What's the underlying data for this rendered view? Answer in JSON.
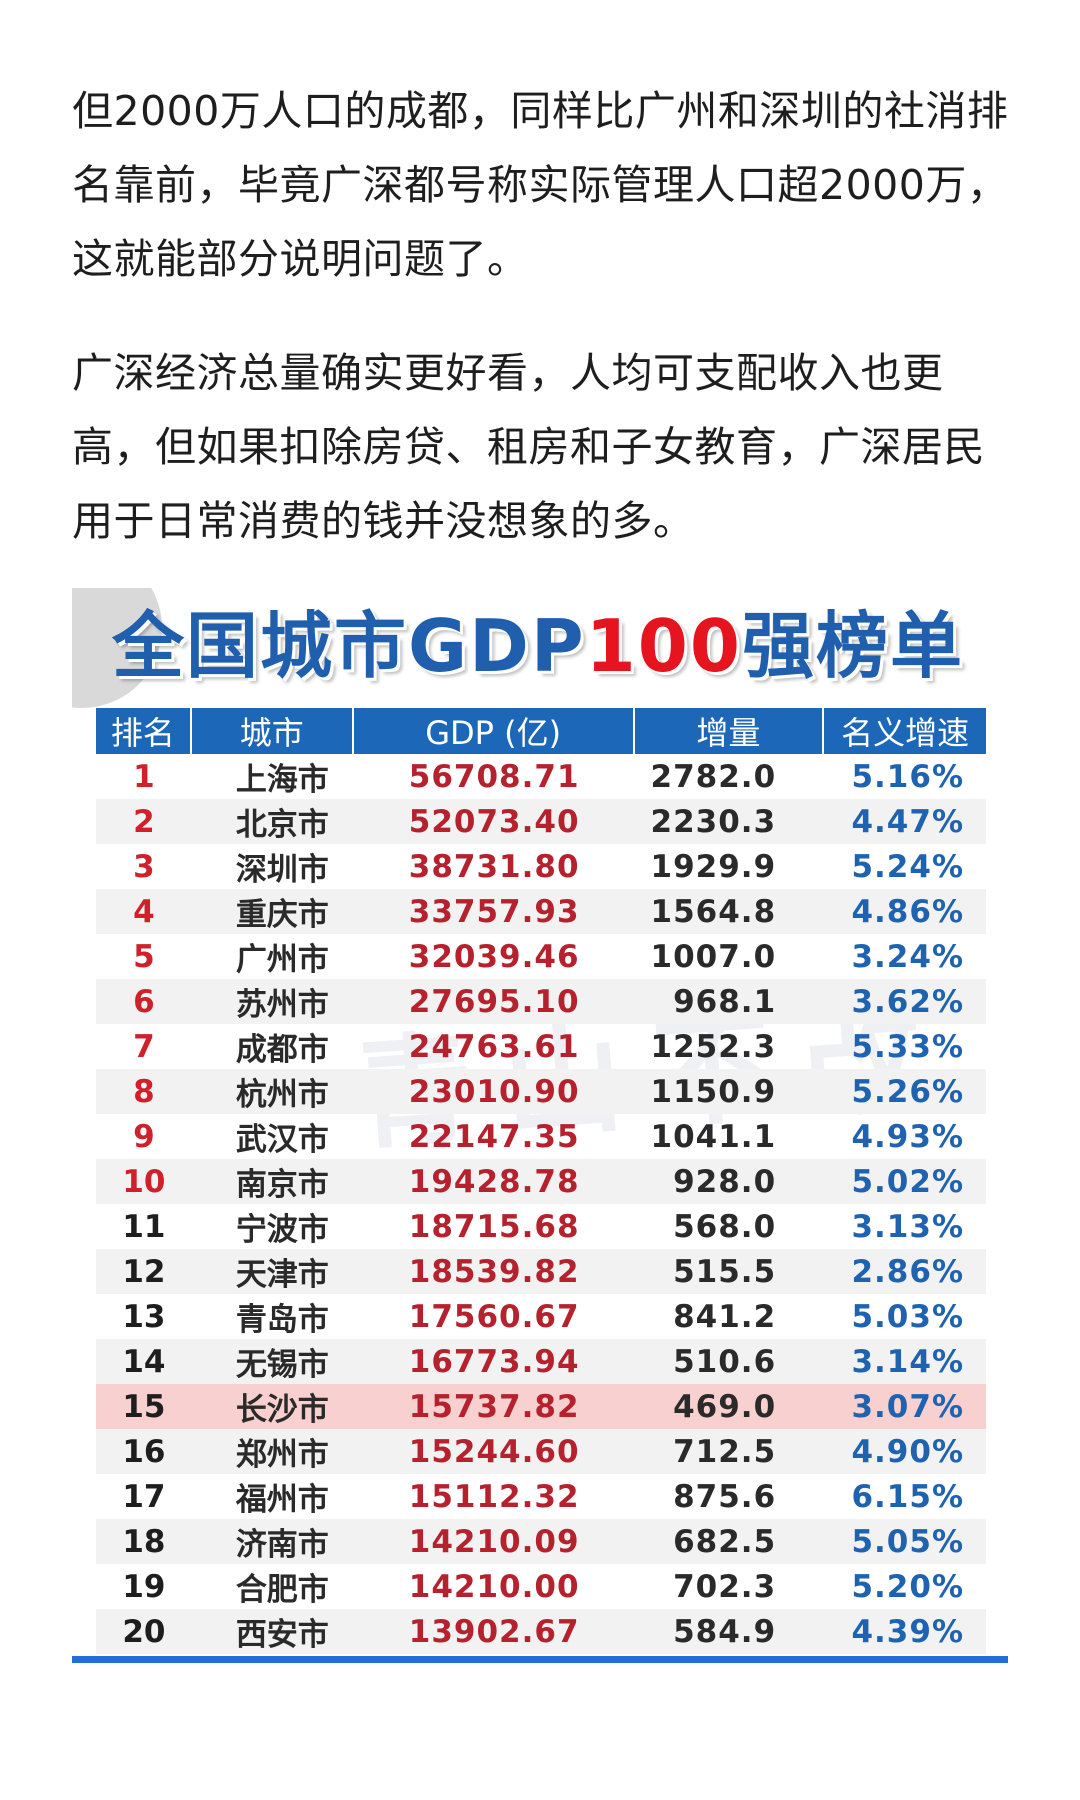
{
  "article": {
    "paragraphs": [
      "但2000万人口的成都，同样比广州和深圳的社消排名靠前，毕竟广深都号称实际管理人口超2000万，这就能部分说明问题了。",
      "广深经济总量确实更好看，人均可支配收入也更高，但如果扣除房贷、租房和子女教育，广深居民用于日常消费的钱并没想象的多。"
    ]
  },
  "figure": {
    "title_part1": "全国城市GDP",
    "title_number": "100",
    "title_part2": "强榜单",
    "watermark": "青山不改",
    "headers": [
      "排名",
      "城市",
      "GDP (亿)",
      "增量",
      "名义增速"
    ],
    "rows": [
      {
        "rank": "1",
        "city": "上海市",
        "gdp": "56708.71",
        "increase": "2782.0",
        "growth": "5.16%"
      },
      {
        "rank": "2",
        "city": "北京市",
        "gdp": "52073.40",
        "increase": "2230.3",
        "growth": "4.47%"
      },
      {
        "rank": "3",
        "city": "深圳市",
        "gdp": "38731.80",
        "increase": "1929.9",
        "growth": "5.24%"
      },
      {
        "rank": "4",
        "city": "重庆市",
        "gdp": "33757.93",
        "increase": "1564.8",
        "growth": "4.86%"
      },
      {
        "rank": "5",
        "city": "广州市",
        "gdp": "32039.46",
        "increase": "1007.0",
        "growth": "3.24%"
      },
      {
        "rank": "6",
        "city": "苏州市",
        "gdp": "27695.10",
        "increase": "968.1",
        "growth": "3.62%"
      },
      {
        "rank": "7",
        "city": "成都市",
        "gdp": "24763.61",
        "increase": "1252.3",
        "growth": "5.33%"
      },
      {
        "rank": "8",
        "city": "杭州市",
        "gdp": "23010.90",
        "increase": "1150.9",
        "growth": "5.26%"
      },
      {
        "rank": "9",
        "city": "武汉市",
        "gdp": "22147.35",
        "increase": "1041.1",
        "growth": "4.93%"
      },
      {
        "rank": "10",
        "city": "南京市",
        "gdp": "19428.78",
        "increase": "928.0",
        "growth": "5.02%"
      },
      {
        "rank": "11",
        "city": "宁波市",
        "gdp": "18715.68",
        "increase": "568.0",
        "growth": "3.13%"
      },
      {
        "rank": "12",
        "city": "天津市",
        "gdp": "18539.82",
        "increase": "515.5",
        "growth": "2.86%"
      },
      {
        "rank": "13",
        "city": "青岛市",
        "gdp": "17560.67",
        "increase": "841.2",
        "growth": "5.03%"
      },
      {
        "rank": "14",
        "city": "无锡市",
        "gdp": "16773.94",
        "increase": "510.6",
        "growth": "3.14%"
      },
      {
        "rank": "15",
        "city": "长沙市",
        "gdp": "15737.82",
        "increase": "469.0",
        "growth": "3.07%"
      },
      {
        "rank": "16",
        "city": "郑州市",
        "gdp": "15244.60",
        "increase": "712.5",
        "growth": "4.90%"
      },
      {
        "rank": "17",
        "city": "福州市",
        "gdp": "15112.32",
        "increase": "875.6",
        "growth": "6.15%"
      },
      {
        "rank": "18",
        "city": "济南市",
        "gdp": "14210.09",
        "increase": "682.5",
        "growth": "5.05%"
      },
      {
        "rank": "19",
        "city": "合肥市",
        "gdp": "14210.00",
        "increase": "702.3",
        "growth": "5.20%"
      },
      {
        "rank": "20",
        "city": "西安市",
        "gdp": "13902.67",
        "increase": "584.9",
        "growth": "4.39%"
      }
    ],
    "red_rank_count": 10,
    "highlight_rank": "15"
  },
  "colors": {
    "header_bg": "#1d67b8",
    "gdp_text": "#b5222e",
    "growth_text": "#1f63b0",
    "highlight_row": "#f9d0d0",
    "title_blue": "#1f5fae",
    "title_red": "#e6141e"
  }
}
